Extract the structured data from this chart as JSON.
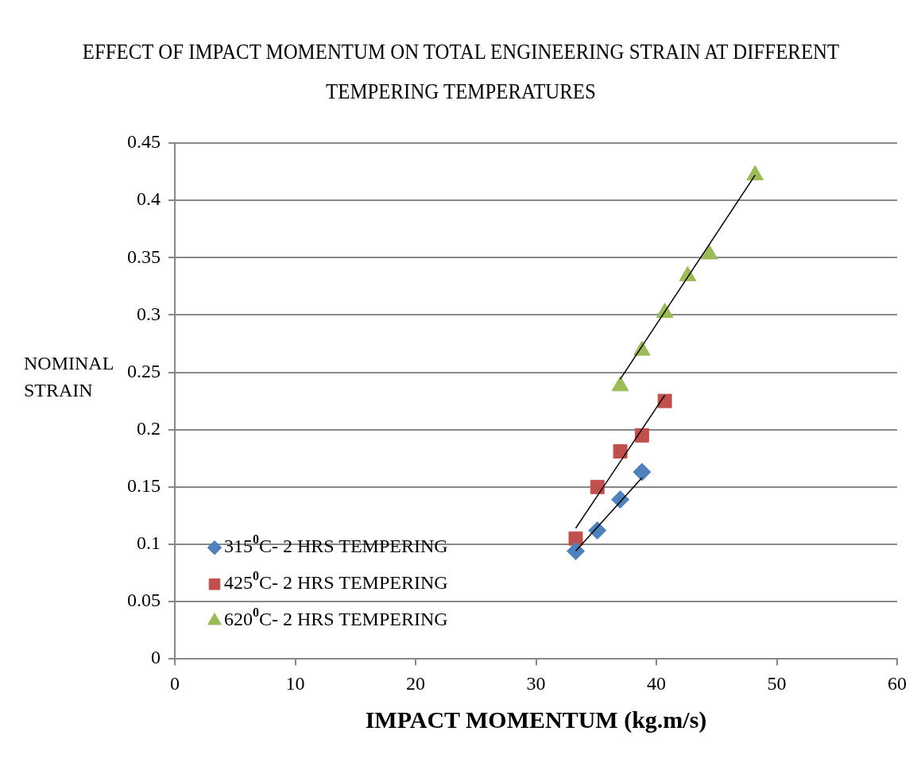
{
  "chart_data": {
    "type": "scatter",
    "title": "EFFECT OF IMPACT MOMENTUM ON  TOTAL ENGINEERING STRAIN AT DIFFERENT TEMPERING TEMPERATURES",
    "xlabel": "IMPACT MOMENTUM (kg.m/s)",
    "ylabel": "NOMINAL STRAIN",
    "xlim": [
      0,
      60
    ],
    "xticks": [
      0,
      10,
      20,
      30,
      40,
      50,
      60
    ],
    "ylim": [
      0,
      0.45
    ],
    "yticks": [
      0,
      0.05,
      0.1,
      0.15,
      0.2,
      0.25,
      0.3,
      0.35,
      0.4,
      0.45
    ],
    "grid": "y",
    "legend": "bottom left",
    "series": [
      {
        "name": "315$^{0}$C- 2 HRS TEMPERING",
        "color": "#4f81bd",
        "marker": "diamond",
        "x": [
          33.3,
          35.1,
          37.0,
          38.8
        ],
        "values": [
          0.094,
          0.112,
          0.139,
          0.163
        ]
      },
      {
        "name": "425$^{0}$C- 2 HRS TEMPERING",
        "color": "#c0504d",
        "marker": "square",
        "x": [
          33.3,
          35.1,
          37.0,
          38.8,
          40.7
        ],
        "values": [
          0.105,
          0.15,
          0.181,
          0.195,
          0.225
        ]
      },
      {
        "name": "620$^{0}$C- 2 HRS TEMPERING",
        "color": "#9bbb59",
        "marker": "triangle",
        "x": [
          37.0,
          38.8,
          40.7,
          42.6,
          44.4,
          48.2
        ],
        "values": [
          0.238,
          0.269,
          0.302,
          0.334,
          0.353,
          0.422
        ]
      },
      {
        "type": "line",
        "color": "#000000",
        "marker": "none",
        "x": [
          33.3,
          38.8
        ],
        "values": [
          0.094,
          0.158
        ]
      },
      {
        "type": "line",
        "color": "#000000",
        "marker": "none",
        "x": [
          33.3,
          40.7
        ],
        "values": [
          0.114,
          0.23
        ]
      },
      {
        "type": "line",
        "color": "#000000",
        "marker": "none",
        "x": [
          37.0,
          48.2
        ],
        "values": [
          0.244,
          0.422
        ]
      }
    ]
  }
}
